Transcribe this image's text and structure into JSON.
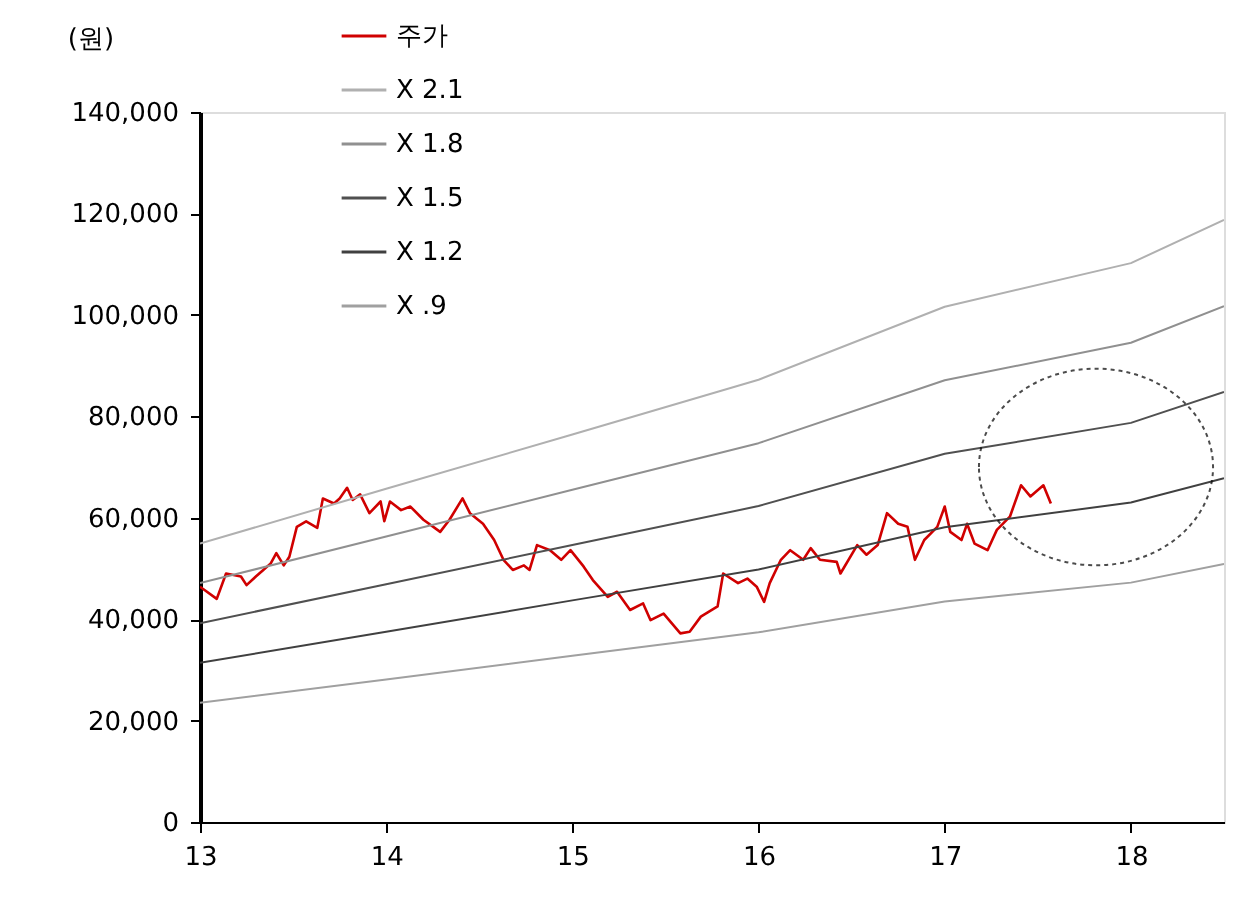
{
  "chart_data": {
    "type": "line",
    "ylabel": "(원)",
    "xlim": [
      13,
      18.5
    ],
    "xticks": [
      13,
      14,
      15,
      16,
      17,
      18
    ],
    "ylim": [
      0,
      140000
    ],
    "yticks": [
      0,
      {
        "value": 20000,
        "label": "20,000"
      },
      {
        "value": 40000,
        "label": "40,000"
      },
      {
        "value": 60000,
        "label": "60,000"
      },
      {
        "value": 80000,
        "label": "80,000"
      },
      {
        "value": 100000,
        "label": "100,000"
      },
      {
        "value": 120000,
        "label": "120,000"
      },
      {
        "value": 140000,
        "label": "140,000"
      }
    ],
    "legend": "top left",
    "grid": false,
    "line_style": "solid",
    "marker": "none",
    "series": [
      {
        "name": "주가",
        "color": "#d00000",
        "x": [
          13.0,
          13.09,
          13.14,
          13.22,
          13.25,
          13.3,
          13.34,
          13.38,
          13.41,
          13.45,
          13.48,
          13.52,
          13.57,
          13.63,
          13.66,
          13.72,
          13.75,
          13.79,
          13.82,
          13.86,
          13.91,
          13.97,
          13.99,
          14.02,
          14.08,
          14.13,
          14.2,
          14.29,
          14.34,
          14.41,
          14.45,
          14.52,
          14.58,
          14.63,
          14.68,
          14.74,
          14.77,
          14.81,
          14.88,
          14.94,
          14.99,
          15.06,
          15.11,
          15.19,
          15.24,
          15.31,
          15.38,
          15.42,
          15.49,
          15.58,
          15.63,
          15.69,
          15.78,
          15.81,
          15.89,
          15.94,
          15.99,
          16.03,
          16.06,
          16.12,
          16.17,
          16.24,
          16.28,
          16.33,
          16.42,
          16.44,
          16.53,
          16.58,
          16.64,
          16.69,
          16.75,
          16.8,
          16.84,
          16.89,
          16.96,
          17.0,
          17.03,
          17.09,
          17.12,
          17.16,
          17.23,
          17.28,
          17.35,
          17.41,
          17.46,
          17.53,
          17.57
        ],
        "values": [
          46400,
          44000,
          49000,
          48400,
          46700,
          48400,
          49700,
          51000,
          53000,
          50600,
          52300,
          58200,
          59300,
          58000,
          63800,
          62800,
          63800,
          65900,
          63500,
          64600,
          60900,
          63200,
          59300,
          63200,
          61500,
          62200,
          59600,
          57200,
          59600,
          63800,
          60900,
          58800,
          55600,
          51700,
          49700,
          50600,
          49700,
          54600,
          53600,
          51700,
          53600,
          50400,
          47700,
          44400,
          45400,
          41800,
          43100,
          39800,
          41100,
          37200,
          37500,
          40500,
          42500,
          49000,
          47100,
          48000,
          46400,
          43400,
          47100,
          51700,
          53600,
          51700,
          54000,
          51700,
          51300,
          49000,
          54600,
          52700,
          54600,
          60900,
          58800,
          58200,
          51700,
          55600,
          58200,
          62200,
          57200,
          55600,
          58800,
          54900,
          53600,
          57600,
          60200,
          66400,
          64200,
          66400,
          62800
        ]
      },
      {
        "name": "X 2.1",
        "color": "#b0b0b0",
        "x": [
          13,
          14,
          15,
          16,
          17,
          18,
          18.5
        ],
        "values": [
          54900,
          65700,
          76400,
          87200,
          101600,
          110200,
          118700
        ]
      },
      {
        "name": "X 1.8",
        "color": "#909090",
        "x": [
          13,
          14,
          15,
          16,
          17,
          18,
          18.5
        ],
        "values": [
          47100,
          56300,
          65500,
          74700,
          87100,
          94500,
          101700
        ]
      },
      {
        "name": "X 1.5",
        "color": "#505050",
        "x": [
          13,
          14,
          15,
          16,
          17,
          18,
          18.5
        ],
        "values": [
          39200,
          46900,
          54600,
          62300,
          72600,
          78700,
          84800
        ]
      },
      {
        "name": "X 1.2",
        "color": "#404040",
        "x": [
          13,
          14,
          15,
          16,
          17,
          18,
          18.5
        ],
        "values": [
          31400,
          37500,
          43700,
          49800,
          58100,
          63000,
          67800
        ]
      },
      {
        "name": "X .9",
        "color": "#a0a0a0",
        "x": [
          13,
          14,
          15,
          16,
          17,
          18,
          18.5
        ],
        "values": [
          23500,
          28100,
          32800,
          37400,
          43500,
          47200,
          50900
        ]
      }
    ]
  }
}
